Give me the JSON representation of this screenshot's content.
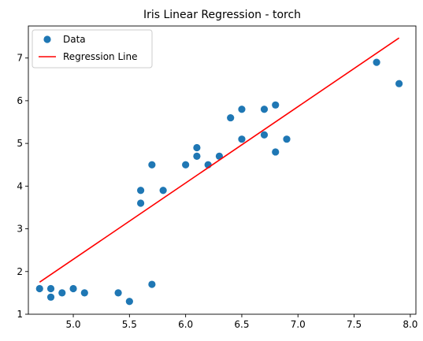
{
  "chart_data": {
    "type": "scatter",
    "title": "Iris Linear Regression - torch",
    "xlabel": "",
    "ylabel": "",
    "xlim": [
      4.6,
      8.05
    ],
    "ylim": [
      1.0,
      7.75
    ],
    "xticks": [
      5.0,
      5.5,
      6.0,
      6.5,
      7.0,
      7.5,
      8.0
    ],
    "xtick_labels": [
      "5.0",
      "5.5",
      "6.0",
      "6.5",
      "7.0",
      "7.5",
      "8.0"
    ],
    "yticks": [
      1,
      2,
      3,
      4,
      5,
      6,
      7
    ],
    "ytick_labels": [
      "1",
      "2",
      "3",
      "4",
      "5",
      "6",
      "7"
    ],
    "grid": false,
    "legend_position": "top-left",
    "series": [
      {
        "name": "Data",
        "kind": "scatter",
        "color": "#1f77b4",
        "points": [
          [
            4.7,
            1.6
          ],
          [
            4.8,
            1.6
          ],
          [
            4.8,
            1.4
          ],
          [
            4.9,
            1.5
          ],
          [
            5.0,
            1.6
          ],
          [
            5.1,
            1.5
          ],
          [
            5.4,
            1.5
          ],
          [
            5.5,
            1.3
          ],
          [
            5.6,
            3.9
          ],
          [
            5.6,
            3.6
          ],
          [
            5.7,
            4.5
          ],
          [
            5.7,
            1.7
          ],
          [
            5.8,
            3.9
          ],
          [
            6.0,
            4.5
          ],
          [
            6.1,
            4.9
          ],
          [
            6.1,
            4.7
          ],
          [
            6.2,
            4.5
          ],
          [
            6.3,
            4.7
          ],
          [
            6.4,
            5.6
          ],
          [
            6.5,
            5.8
          ],
          [
            6.5,
            5.1
          ],
          [
            6.7,
            5.8
          ],
          [
            6.7,
            5.2
          ],
          [
            6.8,
            5.9
          ],
          [
            6.8,
            4.8
          ],
          [
            6.9,
            5.1
          ],
          [
            7.7,
            6.9
          ],
          [
            7.9,
            6.4
          ]
        ]
      },
      {
        "name": "Regression Line",
        "kind": "line",
        "color": "#ff0000",
        "points": [
          [
            4.7,
            1.75
          ],
          [
            7.9,
            7.47
          ]
        ]
      }
    ]
  }
}
